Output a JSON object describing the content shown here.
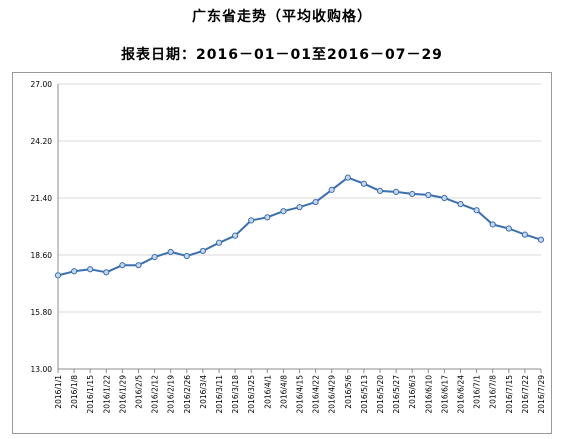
{
  "header": {
    "title": "广东省走势（平均收购格）",
    "subtitle": "报表日期：2016－01－01至2016－07－29"
  },
  "colors": {
    "line": "#3b6fb0",
    "marker_fill": "#c6d8ef",
    "grid": "#d9d9d9",
    "axis": "#8c8c8c"
  },
  "chart_data": {
    "type": "line",
    "title": "",
    "xlabel": "",
    "ylabel": "",
    "ylim": [
      13.0,
      27.0
    ],
    "yticks": [
      "13.00",
      "15.80",
      "18.60",
      "21.40",
      "24.20",
      "27.00"
    ],
    "grid": "horizontal",
    "x": [
      "2016/1/1",
      "2016/1/8",
      "2016/1/15",
      "2016/1/22",
      "2016/1/29",
      "2016/2/5",
      "2016/2/12",
      "2016/2/19",
      "2016/2/26",
      "2016/3/4",
      "2016/3/11",
      "2016/3/18",
      "2016/3/25",
      "2016/4/1",
      "2016/4/8",
      "2016/4/15",
      "2016/4/22",
      "2016/4/29",
      "2016/5/6",
      "2016/5/13",
      "2016/5/20",
      "2016/5/27",
      "2016/6/3",
      "2016/6/10",
      "2016/6/17",
      "2016/6/24",
      "2016/7/1",
      "2016/7/8",
      "2016/7/15",
      "2016/7/22",
      "2016/7/29"
    ],
    "values": [
      17.6,
      17.8,
      17.9,
      17.75,
      18.1,
      18.1,
      18.5,
      18.75,
      18.55,
      18.8,
      19.2,
      19.55,
      20.3,
      20.45,
      20.75,
      20.95,
      21.2,
      21.8,
      22.4,
      22.1,
      21.75,
      21.7,
      21.6,
      21.55,
      21.4,
      21.1,
      20.8,
      20.1,
      19.9,
      19.6,
      19.35
    ]
  }
}
